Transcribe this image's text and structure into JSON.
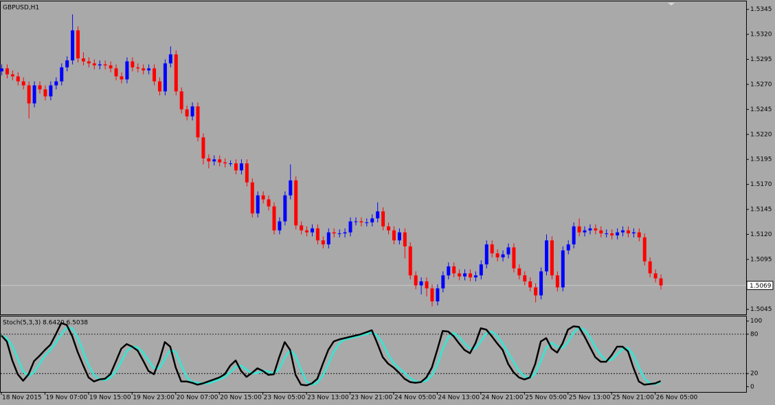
{
  "chart_data": [
    {
      "type": "candlestick",
      "title": "GBPUSD,H1",
      "categories": [
        "18 Nov 2015",
        null,
        null,
        null,
        null,
        null,
        null,
        null,
        "19 Nov 07:00",
        null,
        null,
        null,
        null,
        null,
        null,
        null,
        "19 Nov 15:00",
        null,
        null,
        null,
        null,
        null,
        null,
        null,
        "19 Nov 23:00",
        null,
        null,
        null,
        null,
        null,
        null,
        null,
        "20 Nov 07:00",
        null,
        null,
        null,
        null,
        null,
        null,
        null,
        "20 Nov 15:00",
        null,
        null,
        null,
        null,
        null,
        null,
        null,
        "23 Nov 05:00",
        null,
        null,
        null,
        null,
        null,
        null,
        null,
        "23 Nov 13:00",
        null,
        null,
        null,
        null,
        null,
        null,
        null,
        "23 Nov 21:00",
        null,
        null,
        null,
        null,
        null,
        null,
        null,
        "24 Nov 05:00",
        null,
        null,
        null,
        null,
        null,
        null,
        null,
        "24 Nov 13:00",
        null,
        null,
        null,
        null,
        null,
        null,
        null,
        "24 Nov 21:00",
        null,
        null,
        null,
        null,
        null,
        null,
        null,
        "25 Nov 05:00",
        null,
        null,
        null,
        null,
        null,
        null,
        null,
        "25 Nov 13:00",
        null,
        null,
        null,
        null,
        null,
        null,
        null,
        "25 Nov 21:00",
        null,
        null,
        null,
        null,
        null,
        null,
        null,
        "26 Nov 05:00",
        null
      ],
      "open": [
        1.5283,
        1.5286,
        1.528,
        1.5278,
        1.5273,
        1.5269,
        1.5251,
        1.5269,
        1.5265,
        1.5258,
        1.5269,
        1.5273,
        1.5287,
        1.5294,
        1.5324,
        1.5296,
        1.5293,
        1.5291,
        1.5289,
        1.529,
        1.5289,
        1.5286,
        1.5278,
        1.5275,
        1.5293,
        1.5287,
        1.5286,
        1.5284,
        1.5286,
        1.5273,
        1.5263,
        1.5291,
        1.53,
        1.5263,
        1.5245,
        1.5238,
        1.5248,
        1.5217,
        1.5196,
        1.5193,
        1.5195,
        1.5192,
        1.5191,
        1.5191,
        1.5184,
        1.5191,
        1.5172,
        1.5141,
        1.5159,
        1.5155,
        1.5148,
        1.5124,
        1.5133,
        1.5159,
        1.5174,
        1.5129,
        1.5124,
        1.5122,
        1.5126,
        1.5114,
        1.511,
        1.5122,
        1.5121,
        1.5121,
        1.5122,
        1.5133,
        1.5133,
        1.5132,
        1.5132,
        1.5136,
        1.5143,
        1.5128,
        1.5124,
        1.5114,
        1.5122,
        1.5108,
        1.5079,
        1.5069,
        1.5073,
        1.5066,
        1.5053,
        1.5066,
        1.5079,
        1.5088,
        1.5081,
        1.5078,
        1.5081,
        1.5077,
        1.5079,
        1.509,
        1.511,
        1.5101,
        1.5097,
        1.51,
        1.5107,
        1.5086,
        1.5079,
        1.5073,
        1.5067,
        1.5059,
        1.5083,
        1.5114,
        1.5079,
        1.5067,
        1.5104,
        1.511,
        1.5128,
        1.5122,
        1.5124,
        1.5126,
        1.5124,
        1.5121,
        1.5121,
        1.5119,
        1.5122,
        1.5124,
        1.5121,
        1.5122,
        1.5117,
        1.5093,
        1.5081,
        1.5076
      ],
      "high": [
        1.529,
        1.529,
        1.5284,
        1.5282,
        1.5277,
        1.5273,
        1.5273,
        1.5273,
        1.5269,
        1.5273,
        1.5277,
        1.5291,
        1.5298,
        1.534,
        1.5328,
        1.5302,
        1.5297,
        1.5295,
        1.5294,
        1.5294,
        1.5293,
        1.529,
        1.5282,
        1.5297,
        1.5297,
        1.5291,
        1.529,
        1.529,
        1.529,
        1.5277,
        1.5295,
        1.5308,
        1.5304,
        1.5267,
        1.5249,
        1.5252,
        1.5252,
        1.5221,
        1.52,
        1.5199,
        1.5199,
        1.5196,
        1.5194,
        1.5195,
        1.5195,
        1.5195,
        1.5176,
        1.5163,
        1.5163,
        1.5159,
        1.5152,
        1.5137,
        1.5163,
        1.519,
        1.5178,
        1.5133,
        1.5128,
        1.513,
        1.513,
        1.5118,
        1.5126,
        1.5126,
        1.5125,
        1.5126,
        1.5137,
        1.5137,
        1.5137,
        1.5136,
        1.514,
        1.5152,
        1.5147,
        1.5132,
        1.5128,
        1.5126,
        1.5126,
        1.5112,
        1.5083,
        1.5077,
        1.5077,
        1.507,
        1.507,
        1.5083,
        1.5092,
        1.5092,
        1.5085,
        1.5085,
        1.5085,
        1.5083,
        1.5094,
        1.5114,
        1.5114,
        1.5105,
        1.5104,
        1.5111,
        1.5111,
        1.509,
        1.5083,
        1.5077,
        1.5071,
        1.5087,
        1.512,
        1.5118,
        1.5083,
        1.5108,
        1.5114,
        1.5132,
        1.5136,
        1.5128,
        1.513,
        1.513,
        1.5128,
        1.5125,
        1.5125,
        1.5126,
        1.5128,
        1.5128,
        1.5126,
        1.5126,
        1.5121,
        1.5097,
        1.5085,
        1.508
      ],
      "low": [
        1.5279,
        1.5276,
        1.5274,
        1.5269,
        1.5265,
        1.5236,
        1.5247,
        1.5261,
        1.5254,
        1.5254,
        1.5265,
        1.5269,
        1.5283,
        1.529,
        1.5292,
        1.5289,
        1.5287,
        1.5285,
        1.5285,
        1.5285,
        1.5282,
        1.5274,
        1.5271,
        1.5271,
        1.5283,
        1.5282,
        1.528,
        1.528,
        1.5269,
        1.5259,
        1.5259,
        1.5287,
        1.5259,
        1.5241,
        1.5234,
        1.5234,
        1.5213,
        1.519,
        1.5186,
        1.5189,
        1.5188,
        1.5187,
        1.5188,
        1.518,
        1.518,
        1.5168,
        1.5137,
        1.5137,
        1.5151,
        1.5144,
        1.512,
        1.512,
        1.5129,
        1.5155,
        1.5125,
        1.512,
        1.5118,
        1.5118,
        1.511,
        1.5106,
        1.5106,
        1.5117,
        1.5117,
        1.5117,
        1.5118,
        1.5129,
        1.5128,
        1.5128,
        1.5128,
        1.5132,
        1.5124,
        1.512,
        1.511,
        1.511,
        1.5096,
        1.5075,
        1.5065,
        1.506,
        1.5058,
        1.5048,
        1.5049,
        1.5062,
        1.5075,
        1.5077,
        1.5074,
        1.5074,
        1.5073,
        1.5073,
        1.5075,
        1.5086,
        1.5097,
        1.5093,
        1.5093,
        1.5096,
        1.5082,
        1.5075,
        1.5069,
        1.5063,
        1.5052,
        1.5055,
        1.5079,
        1.5075,
        1.5063,
        1.5063,
        1.51,
        1.5106,
        1.5118,
        1.5118,
        1.512,
        1.512,
        1.5117,
        1.5117,
        1.5115,
        1.5115,
        1.5118,
        1.5117,
        1.5117,
        1.5113,
        1.5089,
        1.5077,
        1.5072,
        1.5065
      ],
      "close": [
        1.5286,
        1.528,
        1.5278,
        1.5273,
        1.5269,
        1.5251,
        1.5269,
        1.5265,
        1.5258,
        1.5269,
        1.5273,
        1.5287,
        1.5294,
        1.5324,
        1.5296,
        1.5293,
        1.5291,
        1.5289,
        1.529,
        1.5289,
        1.5286,
        1.5278,
        1.5275,
        1.5293,
        1.5287,
        1.5286,
        1.5284,
        1.5286,
        1.5273,
        1.5263,
        1.5291,
        1.53,
        1.5263,
        1.5245,
        1.5238,
        1.5248,
        1.5217,
        1.5196,
        1.5193,
        1.5195,
        1.5192,
        1.5191,
        1.5191,
        1.5184,
        1.5191,
        1.5172,
        1.5141,
        1.5159,
        1.5155,
        1.5148,
        1.5124,
        1.5133,
        1.5159,
        1.5174,
        1.5129,
        1.5124,
        1.5122,
        1.5126,
        1.5114,
        1.511,
        1.5122,
        1.5121,
        1.5121,
        1.5122,
        1.5133,
        1.5133,
        1.5132,
        1.5132,
        1.5136,
        1.5143,
        1.5128,
        1.5124,
        1.5114,
        1.5122,
        1.5108,
        1.5079,
        1.5069,
        1.5073,
        1.5066,
        1.5053,
        1.5066,
        1.5079,
        1.5088,
        1.5081,
        1.5078,
        1.5081,
        1.5077,
        1.5079,
        1.509,
        1.511,
        1.5101,
        1.5097,
        1.51,
        1.5107,
        1.5086,
        1.5079,
        1.5073,
        1.5067,
        1.5059,
        1.5083,
        1.5114,
        1.5079,
        1.5067,
        1.5104,
        1.511,
        1.5128,
        1.5122,
        1.5124,
        1.5126,
        1.5124,
        1.5121,
        1.5121,
        1.5119,
        1.5122,
        1.5124,
        1.5121,
        1.5122,
        1.5117,
        1.5093,
        1.5081,
        1.5076,
        1.5069
      ],
      "up_color": "#0000ff",
      "down_color": "#ff0000",
      "ylim": [
        1.504,
        1.5353
      ],
      "yticks": [
        1.5345,
        {
          "value": 1.532,
          "label": "1.5320"
        },
        1.5295,
        {
          "value": 1.527,
          "label": "1.5270"
        },
        1.5245,
        {
          "value": 1.522,
          "label": "1.5220"
        },
        1.5195,
        {
          "value": 1.517,
          "label": "1.5170"
        },
        1.5145,
        {
          "value": 1.512,
          "label": "1.5120"
        },
        1.5095,
        {
          "value": 1.507,
          "label": "1.5070"
        },
        1.5045
      ],
      "last_price": 1.5069
    },
    {
      "type": "line",
      "title": "Stoch(5,3,3) 8.6420 6.5038",
      "series": [
        {
          "color": "#000000",
          "values": [
            78,
            69,
            40,
            19,
            9,
            19,
            39,
            47,
            56,
            64,
            80,
            97,
            94,
            77,
            53,
            33,
            14,
            8,
            11,
            12,
            19,
            38,
            58,
            65,
            61,
            55,
            40,
            24,
            19,
            40,
            68,
            61,
            29,
            8,
            8,
            6,
            3,
            5,
            8,
            11,
            14,
            19,
            32,
            40,
            24,
            15,
            21,
            28,
            24,
            18,
            19,
            45,
            68,
            56,
            18,
            3,
            2,
            5,
            12,
            35,
            56,
            69,
            72,
            74,
            76,
            78,
            80,
            83,
            86,
            66,
            45,
            35,
            29,
            21,
            12,
            7,
            6,
            7,
            14,
            29,
            56,
            85,
            84,
            77,
            66,
            56,
            51,
            66,
            89,
            87,
            77,
            66,
            56,
            35,
            22,
            14,
            11,
            14,
            35,
            69,
            74,
            58,
            52,
            66,
            87,
            92,
            91,
            77,
            61,
            45,
            38,
            38,
            48,
            61,
            61,
            54,
            29,
            8,
            3,
            4,
            5,
            8.642
          ]
        },
        {
          "color": "#40e0d0",
          "values": [
            78,
            74,
            62,
            43,
            23,
            16,
            22,
            35,
            47,
            56,
            67,
            80,
            90,
            89,
            75,
            54,
            33,
            18,
            11,
            10,
            14,
            23,
            38,
            54,
            61,
            60,
            52,
            40,
            28,
            28,
            42,
            56,
            53,
            33,
            15,
            7,
            6,
            5,
            5,
            8,
            11,
            15,
            22,
            30,
            32,
            26,
            20,
            21,
            24,
            23,
            20,
            27,
            44,
            56,
            47,
            26,
            8,
            3,
            6,
            17,
            34,
            53,
            66,
            72,
            74,
            76,
            78,
            80,
            83,
            78,
            66,
            49,
            36,
            28,
            21,
            13,
            8,
            7,
            9,
            17,
            33,
            57,
            75,
            82,
            76,
            66,
            58,
            58,
            69,
            81,
            84,
            77,
            66,
            52,
            38,
            24,
            16,
            13,
            20,
            39,
            59,
            67,
            61,
            59,
            68,
            82,
            90,
            87,
            76,
            61,
            48,
            40,
            41,
            49,
            57,
            59,
            48,
            30,
            13,
            5,
            4,
            6.5038
          ]
        }
      ],
      "ylim": [
        -7,
        106
      ],
      "yticks": [
        100,
        80,
        20,
        0
      ],
      "levels": [
        80,
        20
      ]
    }
  ]
}
